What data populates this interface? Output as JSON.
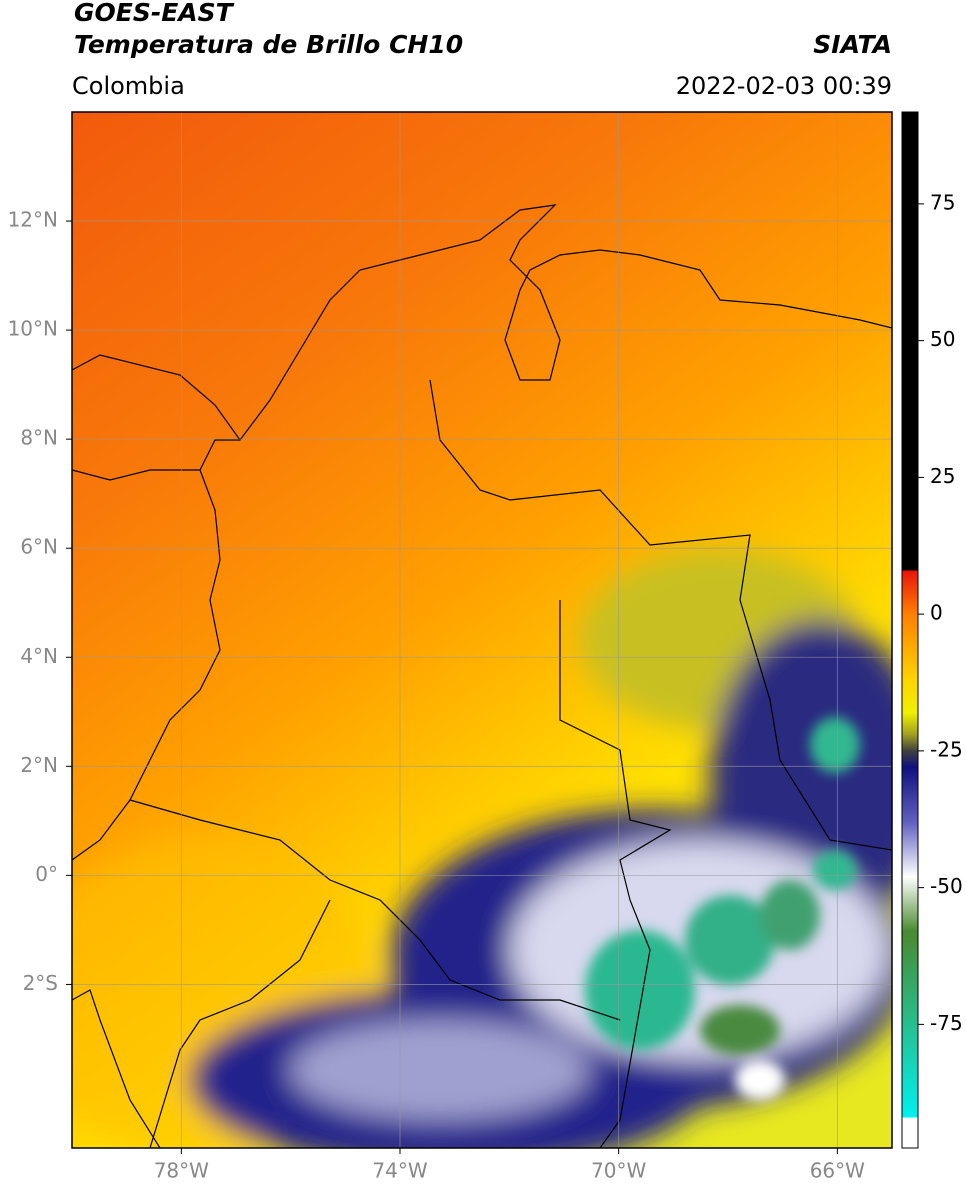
{
  "header": {
    "title": "GOES-EAST",
    "subtitle": "Temperatura de Brillo CH10",
    "source": "SIATA",
    "region": "Colombia",
    "datetime": "2022-02-03 00:39"
  },
  "map": {
    "xlim": [
      -80,
      -65
    ],
    "ylim": [
      -5,
      14
    ],
    "xticks": [
      {
        "value": -78,
        "label": "78°W"
      },
      {
        "value": -74,
        "label": "74°W"
      },
      {
        "value": -70,
        "label": "70°W"
      },
      {
        "value": -66,
        "label": "66°W"
      }
    ],
    "yticks": [
      {
        "value": 12,
        "label": "12°N"
      },
      {
        "value": 10,
        "label": "10°N"
      },
      {
        "value": 8,
        "label": "8°N"
      },
      {
        "value": 6,
        "label": "6°N"
      },
      {
        "value": 4,
        "label": "4°N"
      },
      {
        "value": 2,
        "label": "2°N"
      },
      {
        "value": 0,
        "label": "0°"
      },
      {
        "value": -2,
        "label": "2°S"
      }
    ],
    "grid": true
  },
  "colorbar": {
    "lim": [
      -97.6,
      91.8
    ],
    "ticks": [
      75,
      50,
      25,
      0,
      -25,
      -50,
      -75
    ],
    "stops": [
      {
        "value": 91.8,
        "color": "#000000"
      },
      {
        "value": 8,
        "color": "#000000"
      },
      {
        "value": 8,
        "color": "#e8140a"
      },
      {
        "value": 0,
        "color": "#ff8000"
      },
      {
        "value": -12,
        "color": "#ffd400"
      },
      {
        "value": -18,
        "color": "#f0f000"
      },
      {
        "value": -22,
        "color": "#a0a020"
      },
      {
        "value": -25,
        "color": "#404040"
      },
      {
        "value": -28,
        "color": "#101080"
      },
      {
        "value": -38,
        "color": "#6060c0"
      },
      {
        "value": -48,
        "color": "#ffffff"
      },
      {
        "value": -58,
        "color": "#4a8a30"
      },
      {
        "value": -78,
        "color": "#20c8a0"
      },
      {
        "value": -92,
        "color": "#00f0f0"
      },
      {
        "value": -92,
        "color": "#ffffff"
      },
      {
        "value": -97.6,
        "color": "#ffffff"
      }
    ]
  }
}
